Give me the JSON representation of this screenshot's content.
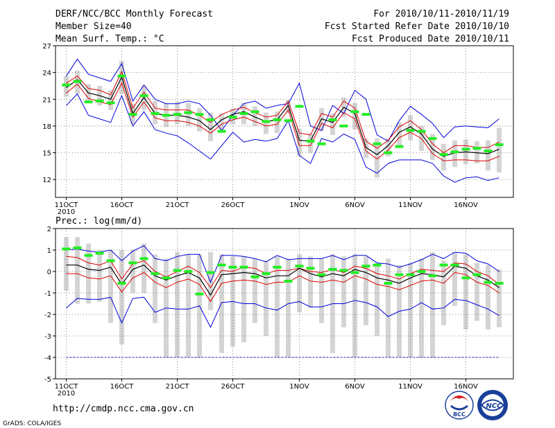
{
  "header": {
    "left": [
      "DERF/NCC/BCC Monthly Forecast",
      "Member Size=40",
      "Mean Surf. Temp.: °C"
    ],
    "right": [
      "For 2010/10/11-2010/11/19",
      "Fcst Started Refer Date 2010/10/10",
      "Fcst Produced Date 2010/10/11"
    ]
  },
  "footer": {
    "url": "http://cmdp.ncc.cma.gov.cn",
    "credit": "GrADS: COLA/IGES",
    "logo1": "BCC",
    "logo2": "NCC"
  },
  "colors": {
    "max": "#0000dd",
    "spread": "#dd0000",
    "mean": "#000000",
    "obs": "#22ee22",
    "box": "#d4d4d4",
    "ref": "#2222aa"
  },
  "chart_data": [
    {
      "type": "line",
      "title": "Mean Surf. Temp.: °C",
      "xlabel": "",
      "ylabel": "",
      "ylim": [
        10,
        27
      ],
      "yticks": [
        12,
        15,
        18,
        21,
        24,
        27
      ],
      "xticks": [
        {
          "i": 0,
          "label": "11OCT",
          "sub": "2010"
        },
        {
          "i": 5,
          "label": "16OCT"
        },
        {
          "i": 10,
          "label": "21OCT"
        },
        {
          "i": 15,
          "label": "26OCT"
        },
        {
          "i": 21,
          "label": "1NOV"
        },
        {
          "i": 26,
          "label": "6NOV"
        },
        {
          "i": 31,
          "label": "11NOV"
        },
        {
          "i": 36,
          "label": "16NOV"
        }
      ],
      "n": 40,
      "series": [
        {
          "name": "max",
          "values": [
            23.6,
            25.5,
            23.8,
            23.4,
            23.0,
            25.0,
            20.8,
            22.6,
            21.0,
            20.5,
            20.5,
            20.8,
            20.5,
            19.2,
            17.5,
            19.2,
            20.5,
            20.8,
            20.0,
            20.3,
            20.5,
            22.8,
            18.0,
            17.5,
            20.3,
            19.4,
            22.0,
            21.0,
            17.0,
            16.3,
            18.6,
            20.2,
            19.3,
            18.3,
            16.7,
            17.9,
            18.0,
            17.9,
            17.8,
            18.8
          ]
        },
        {
          "name": "upper",
          "values": [
            22.8,
            23.6,
            22.2,
            22.0,
            21.5,
            24.1,
            20.0,
            21.8,
            20.0,
            19.8,
            19.8,
            19.8,
            19.2,
            18.4,
            19.3,
            19.8,
            20.1,
            19.5,
            19.0,
            19.2,
            20.8,
            17.2,
            17.0,
            19.4,
            19.0,
            20.8,
            20.0,
            16.3,
            15.5,
            16.4,
            17.9,
            18.6,
            17.6,
            16.0,
            15.0,
            15.8,
            15.8,
            15.6,
            15.6,
            16.2
          ]
        },
        {
          "name": "mean",
          "values": [
            22.3,
            23.2,
            21.7,
            21.4,
            21.0,
            23.5,
            19.4,
            21.2,
            19.4,
            19.2,
            19.2,
            19.0,
            18.6,
            17.6,
            18.7,
            19.3,
            19.6,
            19.0,
            18.5,
            18.7,
            20.3,
            16.4,
            16.3,
            18.8,
            18.4,
            20.1,
            19.4,
            15.6,
            14.8,
            15.8,
            17.3,
            17.9,
            17.1,
            15.4,
            14.6,
            15.0,
            15.1,
            15.0,
            14.9,
            15.4
          ]
        },
        {
          "name": "lower",
          "values": [
            21.7,
            22.7,
            21.1,
            20.7,
            20.4,
            22.8,
            19.0,
            20.7,
            18.9,
            18.6,
            18.6,
            18.4,
            18.0,
            17.2,
            18.2,
            18.7,
            19.0,
            18.5,
            18.0,
            18.2,
            19.8,
            15.8,
            15.8,
            18.3,
            17.8,
            19.5,
            18.8,
            15.2,
            14.3,
            15.3,
            16.7,
            17.3,
            16.6,
            14.9,
            14.1,
            14.2,
            14.2,
            14.1,
            14.1,
            14.6
          ]
        },
        {
          "name": "min",
          "values": [
            20.3,
            21.6,
            19.2,
            18.8,
            18.4,
            21.4,
            18.0,
            19.6,
            17.6,
            17.2,
            16.9,
            16.1,
            15.2,
            14.3,
            15.8,
            17.3,
            16.2,
            16.5,
            16.3,
            16.6,
            18.6,
            14.7,
            13.8,
            16.6,
            16.2,
            17.1,
            16.5,
            13.4,
            12.7,
            13.8,
            14.2,
            14.2,
            14.2,
            13.8,
            12.4,
            11.7,
            12.2,
            12.3,
            11.9,
            12.2
          ]
        },
        {
          "name": "obs",
          "values": [
            22.6,
            23.0,
            20.7,
            20.8,
            20.6,
            23.6,
            19.3,
            21.4,
            19.4,
            19.2,
            19.3,
            19.5,
            19.3,
            18.7,
            17.4,
            19.0,
            19.4,
            19.6,
            18.5,
            18.7,
            18.6,
            20.2,
            16.3,
            16.0,
            18.7,
            18.0,
            19.6,
            19.3,
            16.0,
            15.0,
            15.7,
            17.5,
            17.4,
            16.6,
            14.8,
            15.1,
            15.4,
            15.5,
            15.2,
            15.9
          ]
        }
      ],
      "boxes": {
        "low": [
          21.3,
          21.6,
          20.6,
          20.3,
          19.8,
          21.6,
          18.2,
          19.8,
          18.2,
          17.9,
          18.2,
          18.0,
          17.4,
          16.3,
          17.6,
          18.2,
          18.2,
          18.0,
          17.1,
          17.2,
          19.4,
          14.6,
          15.0,
          17.4,
          17.0,
          19.0,
          17.6,
          14.4,
          12.2,
          14.6,
          15.8,
          16.4,
          15.2,
          14.2,
          13.0,
          13.4,
          13.7,
          13.8,
          13.0,
          12.8
        ],
        "high": [
          23.6,
          24.2,
          22.7,
          22.5,
          22.0,
          25.3,
          20.5,
          22.5,
          20.8,
          20.6,
          20.7,
          20.6,
          20.0,
          19.5,
          19.4,
          20.0,
          20.6,
          20.2,
          19.5,
          19.6,
          20.9,
          17.7,
          17.1,
          20.0,
          19.4,
          21.2,
          20.6,
          16.6,
          16.6,
          16.6,
          18.4,
          19.2,
          18.0,
          17.1,
          16.0,
          16.4,
          16.5,
          16.3,
          16.4,
          17.8
        ]
      }
    },
    {
      "type": "line",
      "title": "Prec.: log(mm/d)",
      "xlabel": "",
      "ylabel": "",
      "ylim": [
        -5,
        2
      ],
      "yticks": [
        -5,
        -4,
        -3,
        -2,
        -1,
        0,
        1,
        2
      ],
      "xticks": [
        {
          "i": 0,
          "label": "11OCT",
          "sub": "2010"
        },
        {
          "i": 5,
          "label": "16OCT"
        },
        {
          "i": 10,
          "label": "21OCT"
        },
        {
          "i": 15,
          "label": "26OCT"
        },
        {
          "i": 21,
          "label": "1NOV"
        },
        {
          "i": 26,
          "label": "6NOV"
        },
        {
          "i": 31,
          "label": "11NOV"
        },
        {
          "i": 36,
          "label": "16NOV"
        }
      ],
      "n": 40,
      "refline": -4,
      "series": [
        {
          "name": "max",
          "values": [
            1.0,
            1.05,
            0.95,
            0.9,
            1.0,
            0.5,
            0.95,
            1.2,
            0.6,
            0.5,
            0.7,
            0.8,
            0.8,
            -0.5,
            0.75,
            0.75,
            0.7,
            0.6,
            0.45,
            0.75,
            0.55,
            0.6,
            0.6,
            0.6,
            0.75,
            0.55,
            0.75,
            0.75,
            0.4,
            0.35,
            0.2,
            0.35,
            0.55,
            0.8,
            0.6,
            0.9,
            0.85,
            0.5,
            0.35,
            0.0
          ]
        },
        {
          "name": "upper",
          "values": [
            0.7,
            0.65,
            0.4,
            0.3,
            0.5,
            -0.35,
            0.35,
            0.5,
            0.0,
            -0.25,
            0.0,
            0.25,
            -0.05,
            -0.75,
            0.05,
            0.0,
            0.2,
            0.15,
            -0.1,
            0.05,
            0.05,
            0.15,
            0.0,
            -0.05,
            0.1,
            -0.05,
            0.25,
            0.15,
            -0.1,
            -0.2,
            -0.35,
            -0.1,
            0.1,
            0.05,
            0.0,
            0.4,
            0.35,
            0.0,
            -0.2,
            -0.6
          ]
        },
        {
          "name": "mean",
          "values": [
            0.3,
            0.3,
            0.1,
            0.05,
            0.2,
            -0.6,
            0.1,
            0.3,
            -0.2,
            -0.4,
            -0.2,
            -0.05,
            -0.3,
            -1.1,
            -0.15,
            -0.1,
            -0.05,
            -0.1,
            -0.3,
            -0.2,
            -0.2,
            0.15,
            -0.1,
            -0.25,
            -0.1,
            -0.2,
            0.1,
            -0.05,
            -0.3,
            -0.4,
            -0.55,
            -0.3,
            -0.1,
            -0.15,
            -0.25,
            0.25,
            0.15,
            -0.2,
            -0.4,
            -0.75
          ]
        },
        {
          "name": "lower",
          "values": [
            -0.1,
            -0.1,
            -0.3,
            -0.35,
            -0.2,
            -0.95,
            -0.3,
            -0.05,
            -0.5,
            -0.75,
            -0.5,
            -0.35,
            -0.6,
            -1.4,
            -0.55,
            -0.45,
            -0.4,
            -0.45,
            -0.6,
            -0.5,
            -0.5,
            -0.2,
            -0.45,
            -0.5,
            -0.4,
            -0.5,
            -0.2,
            -0.35,
            -0.6,
            -0.7,
            -0.85,
            -0.65,
            -0.45,
            -0.4,
            -0.55,
            -0.05,
            -0.15,
            -0.5,
            -0.65,
            -1.0
          ]
        },
        {
          "name": "min",
          "values": [
            -1.7,
            -1.25,
            -1.3,
            -1.3,
            -1.2,
            -2.4,
            -1.25,
            -1.2,
            -1.9,
            -1.7,
            -1.75,
            -1.75,
            -1.6,
            -2.6,
            -1.45,
            -1.4,
            -1.5,
            -1.5,
            -1.7,
            -1.8,
            -1.5,
            -1.4,
            -1.65,
            -1.65,
            -1.5,
            -1.5,
            -1.35,
            -1.45,
            -1.65,
            -2.1,
            -1.85,
            -1.75,
            -1.45,
            -1.75,
            -1.7,
            -1.3,
            -1.35,
            -1.55,
            -1.75,
            -2.05
          ]
        },
        {
          "name": "obs",
          "values": [
            1.05,
            1.1,
            0.75,
            0.85,
            0.5,
            -0.55,
            0.4,
            0.6,
            -0.1,
            -0.3,
            0.05,
            0.0,
            -1.05,
            -0.05,
            0.3,
            0.2,
            0.2,
            -0.25,
            -0.1,
            0.2,
            -0.45,
            0.25,
            0.15,
            -0.15,
            0.1,
            0.05,
            -0.05,
            0.25,
            0.3,
            -0.55,
            -0.15,
            -0.15,
            0.0,
            -0.2,
            0.3,
            0.3,
            -0.3,
            -0.15,
            -0.5,
            -0.55
          ]
        }
      ],
      "boxes": {
        "low": [
          -0.9,
          -1.5,
          -1.5,
          -1.4,
          -2.4,
          -3.4,
          -1.0,
          -1.0,
          -2.4,
          -4.0,
          -4.0,
          -4.0,
          -4.0,
          -1.8,
          -3.8,
          -3.5,
          -3.3,
          -2.4,
          -3.0,
          -4.0,
          -4.0,
          -1.9,
          -1.7,
          -2.4,
          -3.8,
          -2.6,
          -4.0,
          -2.5,
          -3.0,
          -4.0,
          -4.0,
          -4.0,
          -4.0,
          -4.0,
          -2.5,
          -1.6,
          -2.7,
          -2.3,
          -2.7,
          -2.6
        ],
        "high": [
          1.6,
          1.6,
          1.3,
          1.0,
          1.0,
          1.0,
          1.0,
          1.3,
          0.8,
          0.6,
          0.9,
          0.8,
          0.8,
          0.9,
          0.8,
          0.7,
          0.7,
          0.6,
          0.5,
          0.7,
          0.6,
          0.8,
          0.7,
          0.6,
          0.8,
          0.7,
          0.8,
          0.7,
          0.4,
          0.6,
          0.3,
          0.4,
          0.6,
          0.9,
          0.5,
          0.9,
          0.8,
          0.4,
          0.3,
          0.1
        ]
      }
    }
  ]
}
